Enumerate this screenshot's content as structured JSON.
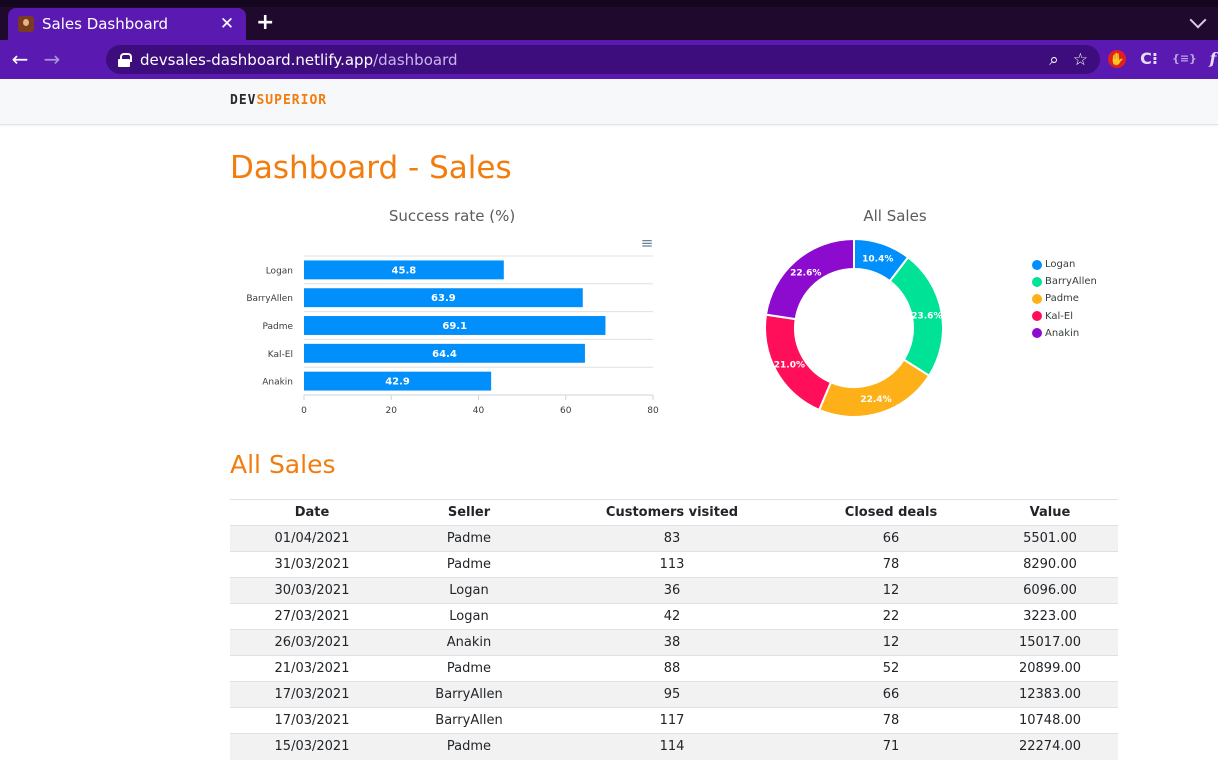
{
  "browser": {
    "tab_title": "Sales Dashboard",
    "tab_close": "✕",
    "new_tab": "+",
    "url_host": "devsales-dashboard.netlify.app",
    "url_path": "/dashboard",
    "back_glyph": "←",
    "forward_glyph": "→",
    "zoom_glyph": "⌕",
    "star_glyph": "☆",
    "ext_c": "C⁝",
    "ext_code": "{≡}",
    "ext_f": "f"
  },
  "header": {
    "brand_dev": "DEV",
    "brand_superior": "SUPERIOR"
  },
  "page": {
    "title": "Dashboard - Sales"
  },
  "bar_chart": {
    "menu_glyph": "≡"
  },
  "chart_data": [
    {
      "type": "bar",
      "orientation": "horizontal",
      "title": "Success rate (%)",
      "categories": [
        "Logan",
        "BarryAllen",
        "Padme",
        "Kal-El",
        "Anakin"
      ],
      "values": [
        45.8,
        63.9,
        69.1,
        64.4,
        42.9
      ],
      "data_labels": [
        "45.8",
        "63.9",
        "69.1",
        "64.4",
        "42.9"
      ],
      "xlim": [
        0,
        80
      ],
      "x_ticks": [
        "0",
        "20",
        "40",
        "60",
        "80"
      ],
      "color": "#008ffb",
      "grid": true
    },
    {
      "type": "pie",
      "variant": "donut",
      "title": "All Sales",
      "labels": [
        "Logan",
        "BarryAllen",
        "Padme",
        "Kal-El",
        "Anakin"
      ],
      "values": [
        10.4,
        23.6,
        22.4,
        21.0,
        22.6
      ],
      "data_labels": [
        "10.4%",
        "23.6%",
        "22.4%",
        "21.0%",
        "22.6%"
      ],
      "colors": [
        "#008ffb",
        "#00e396",
        "#feb019",
        "#ff0f5a",
        "#8d0acf"
      ],
      "legend": "right"
    }
  ],
  "sales": {
    "title": "All Sales",
    "columns": [
      "Date",
      "Seller",
      "Customers visited",
      "Closed deals",
      "Value"
    ],
    "rows": [
      [
        "01/04/2021",
        "Padme",
        "83",
        "66",
        "5501.00"
      ],
      [
        "31/03/2021",
        "Padme",
        "113",
        "78",
        "8290.00"
      ],
      [
        "30/03/2021",
        "Logan",
        "36",
        "12",
        "6096.00"
      ],
      [
        "27/03/2021",
        "Logan",
        "42",
        "22",
        "3223.00"
      ],
      [
        "26/03/2021",
        "Anakin",
        "38",
        "12",
        "15017.00"
      ],
      [
        "21/03/2021",
        "Padme",
        "88",
        "52",
        "20899.00"
      ],
      [
        "17/03/2021",
        "BarryAllen",
        "95",
        "66",
        "12383.00"
      ],
      [
        "17/03/2021",
        "BarryAllen",
        "117",
        "78",
        "10748.00"
      ],
      [
        "15/03/2021",
        "Padme",
        "114",
        "71",
        "22274.00"
      ]
    ]
  }
}
